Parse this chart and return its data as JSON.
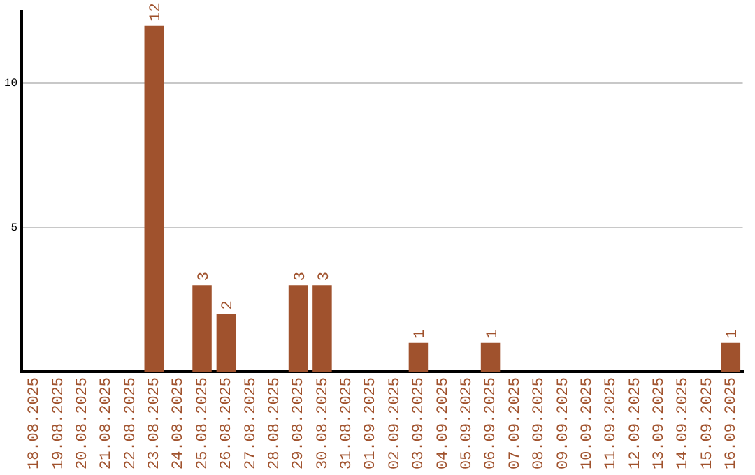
{
  "chart_data": {
    "type": "bar",
    "categories": [
      "18.08.2025",
      "19.08.2025",
      "20.08.2025",
      "21.08.2025",
      "22.08.2025",
      "23.08.2025",
      "24.08.2025",
      "25.08.2025",
      "26.08.2025",
      "27.08.2025",
      "28.08.2025",
      "29.08.2025",
      "30.08.2025",
      "31.08.2025",
      "01.09.2025",
      "02.09.2025",
      "03.09.2025",
      "04.09.2025",
      "05.09.2025",
      "06.09.2025",
      "07.09.2025",
      "08.09.2025",
      "09.09.2025",
      "10.09.2025",
      "11.09.2025",
      "12.09.2025",
      "13.09.2025",
      "14.09.2025",
      "15.09.2025",
      "16.09.2025"
    ],
    "values": [
      0,
      0,
      0,
      0,
      0,
      12,
      0,
      3,
      2,
      0,
      0,
      3,
      3,
      0,
      0,
      0,
      1,
      0,
      0,
      1,
      0,
      0,
      0,
      0,
      0,
      0,
      0,
      0,
      0,
      1
    ],
    "value_labels": [
      null,
      null,
      null,
      null,
      null,
      "12",
      null,
      "3",
      "2",
      null,
      null,
      "3",
      "3",
      null,
      null,
      null,
      "1",
      null,
      null,
      "1",
      null,
      null,
      null,
      null,
      null,
      null,
      null,
      null,
      null,
      "1"
    ],
    "color": "#a0522d",
    "ylim": [
      0,
      12.5
    ],
    "yticks": [
      5,
      10
    ],
    "grid": "y",
    "legend": false
  }
}
